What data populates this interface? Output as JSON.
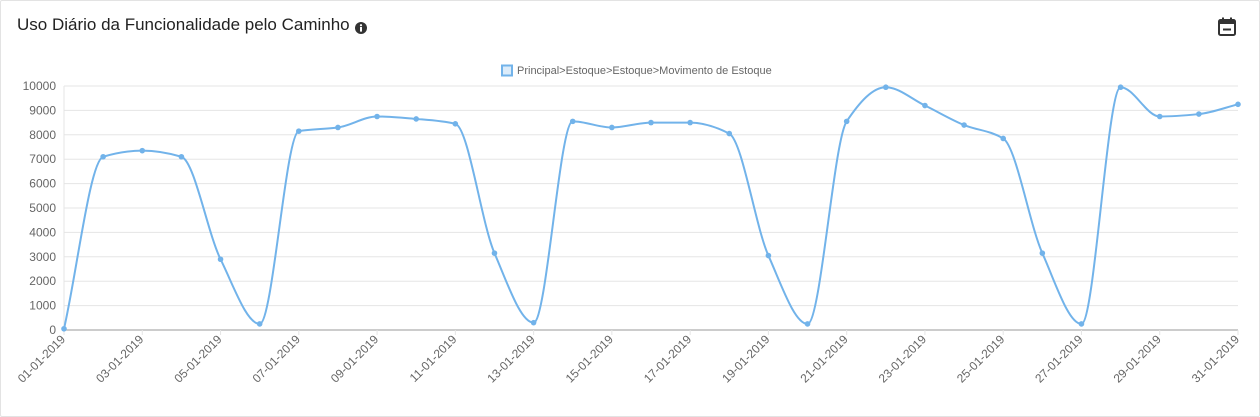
{
  "header": {
    "title": "Uso Diário da Funcionalidade pelo Caminho",
    "info_icon": "info-circle-icon",
    "calendar_icon": "calendar-minus-icon"
  },
  "colors": {
    "series": "#72b3ea",
    "grid": "#e5e5e5",
    "axis": "#999999",
    "text": "#666666"
  },
  "chart_data": {
    "type": "line",
    "title": "",
    "xlabel": "",
    "ylabel": "",
    "ylim": [
      0,
      10000
    ],
    "yticks": [
      0,
      1000,
      2000,
      3000,
      4000,
      5000,
      6000,
      7000,
      8000,
      9000,
      10000
    ],
    "x_tick_labels": [
      "01-01-2019",
      "03-01-2019",
      "05-01-2019",
      "07-01-2019",
      "09-01-2019",
      "11-01-2019",
      "13-01-2019",
      "15-01-2019",
      "17-01-2019",
      "19-01-2019",
      "21-01-2019",
      "23-01-2019",
      "25-01-2019",
      "27-01-2019",
      "29-01-2019",
      "31-01-2019"
    ],
    "x": [
      "01-01-2019",
      "02-01-2019",
      "03-01-2019",
      "04-01-2019",
      "05-01-2019",
      "06-01-2019",
      "07-01-2019",
      "08-01-2019",
      "09-01-2019",
      "10-01-2019",
      "11-01-2019",
      "12-01-2019",
      "13-01-2019",
      "14-01-2019",
      "15-01-2019",
      "16-01-2019",
      "17-01-2019",
      "18-01-2019",
      "19-01-2019",
      "20-01-2019",
      "21-01-2019",
      "22-01-2019",
      "23-01-2019",
      "24-01-2019",
      "25-01-2019",
      "26-01-2019",
      "27-01-2019",
      "28-01-2019",
      "29-01-2019",
      "30-01-2019",
      "31-01-2019"
    ],
    "legend": "top",
    "grid": true,
    "series": [
      {
        "name": "Principal>Estoque>Estoque>Movimento de Estoque",
        "values": [
          50,
          7100,
          7350,
          7100,
          2900,
          250,
          8150,
          8300,
          8750,
          8650,
          8450,
          3150,
          300,
          8550,
          8300,
          8500,
          8500,
          8050,
          3050,
          250,
          8550,
          9950,
          9200,
          8400,
          7850,
          3150,
          250,
          9950,
          8750,
          8850,
          9250
        ]
      }
    ]
  }
}
